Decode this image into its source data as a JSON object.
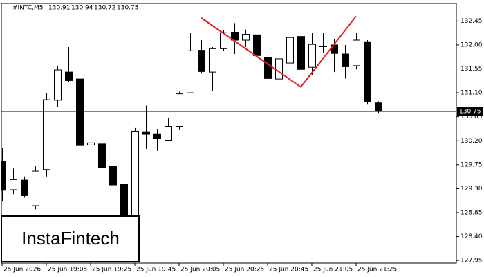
{
  "chart_data": {
    "type": "candlestick",
    "header": {
      "symbol": "#INTC,M5",
      "values": [
        130.91,
        130.94,
        130.72,
        130.75
      ]
    },
    "logo": "InstaFintech",
    "categories": [
      "25 Jun 2026",
      null,
      null,
      null,
      "25 Jun 19:05",
      null,
      null,
      null,
      "25 Jun 19:25",
      null,
      null,
      null,
      "25 Jun 19:45",
      null,
      null,
      null,
      "25 Jun 20:05",
      null,
      null,
      null,
      "25 Jun 20:25",
      null,
      null,
      null,
      "25 Jun 20:45",
      null,
      null,
      null,
      "25 Jun 21:05",
      null,
      null,
      null,
      "25 Jun 21:25",
      null,
      null
    ],
    "open": [
      129.81,
      129.28,
      129.46,
      128.98,
      129.66,
      130.96,
      131.49,
      131.36,
      130.12,
      130.14,
      129.72,
      129.38,
      128.68,
      130.37,
      130.33,
      130.21,
      130.47,
      131.1,
      131.9,
      131.49,
      131.93,
      132.24,
      132.09,
      132.19,
      131.77,
      131.36,
      131.66,
      132.16,
      131.58,
      131.98,
      132.0,
      131.83,
      131.61,
      132.06,
      130.91
    ],
    "high": [
      130.07,
      129.68,
      129.53,
      129.72,
      131.09,
      131.61,
      131.96,
      131.45,
      130.34,
      130.18,
      129.92,
      129.46,
      130.44,
      130.86,
      130.41,
      130.63,
      131.12,
      132.23,
      132.09,
      131.96,
      132.28,
      132.41,
      132.29,
      132.35,
      131.85,
      131.9,
      132.28,
      132.22,
      132.22,
      132.22,
      132.11,
      132.0,
      132.23,
      132.09,
      130.94
    ],
    "low": [
      129.07,
      129.2,
      129.13,
      128.91,
      129.53,
      130.83,
      131.31,
      129.95,
      129.72,
      129.13,
      129.3,
      128.58,
      128.42,
      130.05,
      130.01,
      130.19,
      130.4,
      131.1,
      131.46,
      131.14,
      131.89,
      131.83,
      131.96,
      131.77,
      131.23,
      131.25,
      131.59,
      131.44,
      131.44,
      131.85,
      131.49,
      131.37,
      131.54,
      130.89,
      130.72
    ],
    "close": [
      129.27,
      129.47,
      129.17,
      129.63,
      130.97,
      131.53,
      131.33,
      130.11,
      130.16,
      129.69,
      129.37,
      128.68,
      130.38,
      130.32,
      130.24,
      130.47,
      131.08,
      131.89,
      131.5,
      131.93,
      132.23,
      132.09,
      132.2,
      131.8,
      131.37,
      131.74,
      132.14,
      131.54,
      132.01,
      131.98,
      131.84,
      131.59,
      132.09,
      130.93,
      130.75
    ],
    "up_color": "#ffffff",
    "down_color": "#000000",
    "current_price": 130.75,
    "pattern": {
      "color": "#e02020",
      "x": [
        18,
        27,
        32
      ],
      "y": [
        132.51,
        131.21,
        132.54
      ]
    },
    "ylim": [
      127.9,
      132.78
    ],
    "yticks": [
      127.95,
      {
        "value": 128.4,
        "label": "128.40"
      },
      128.85,
      {
        "value": 129.3,
        "label": "129.30"
      },
      129.75,
      {
        "value": 130.2,
        "label": "130.20"
      },
      130.65,
      {
        "value": 131.1,
        "label": "131.10"
      },
      131.55,
      {
        "value": 132,
        "label": "132.00"
      },
      132.45
    ]
  }
}
